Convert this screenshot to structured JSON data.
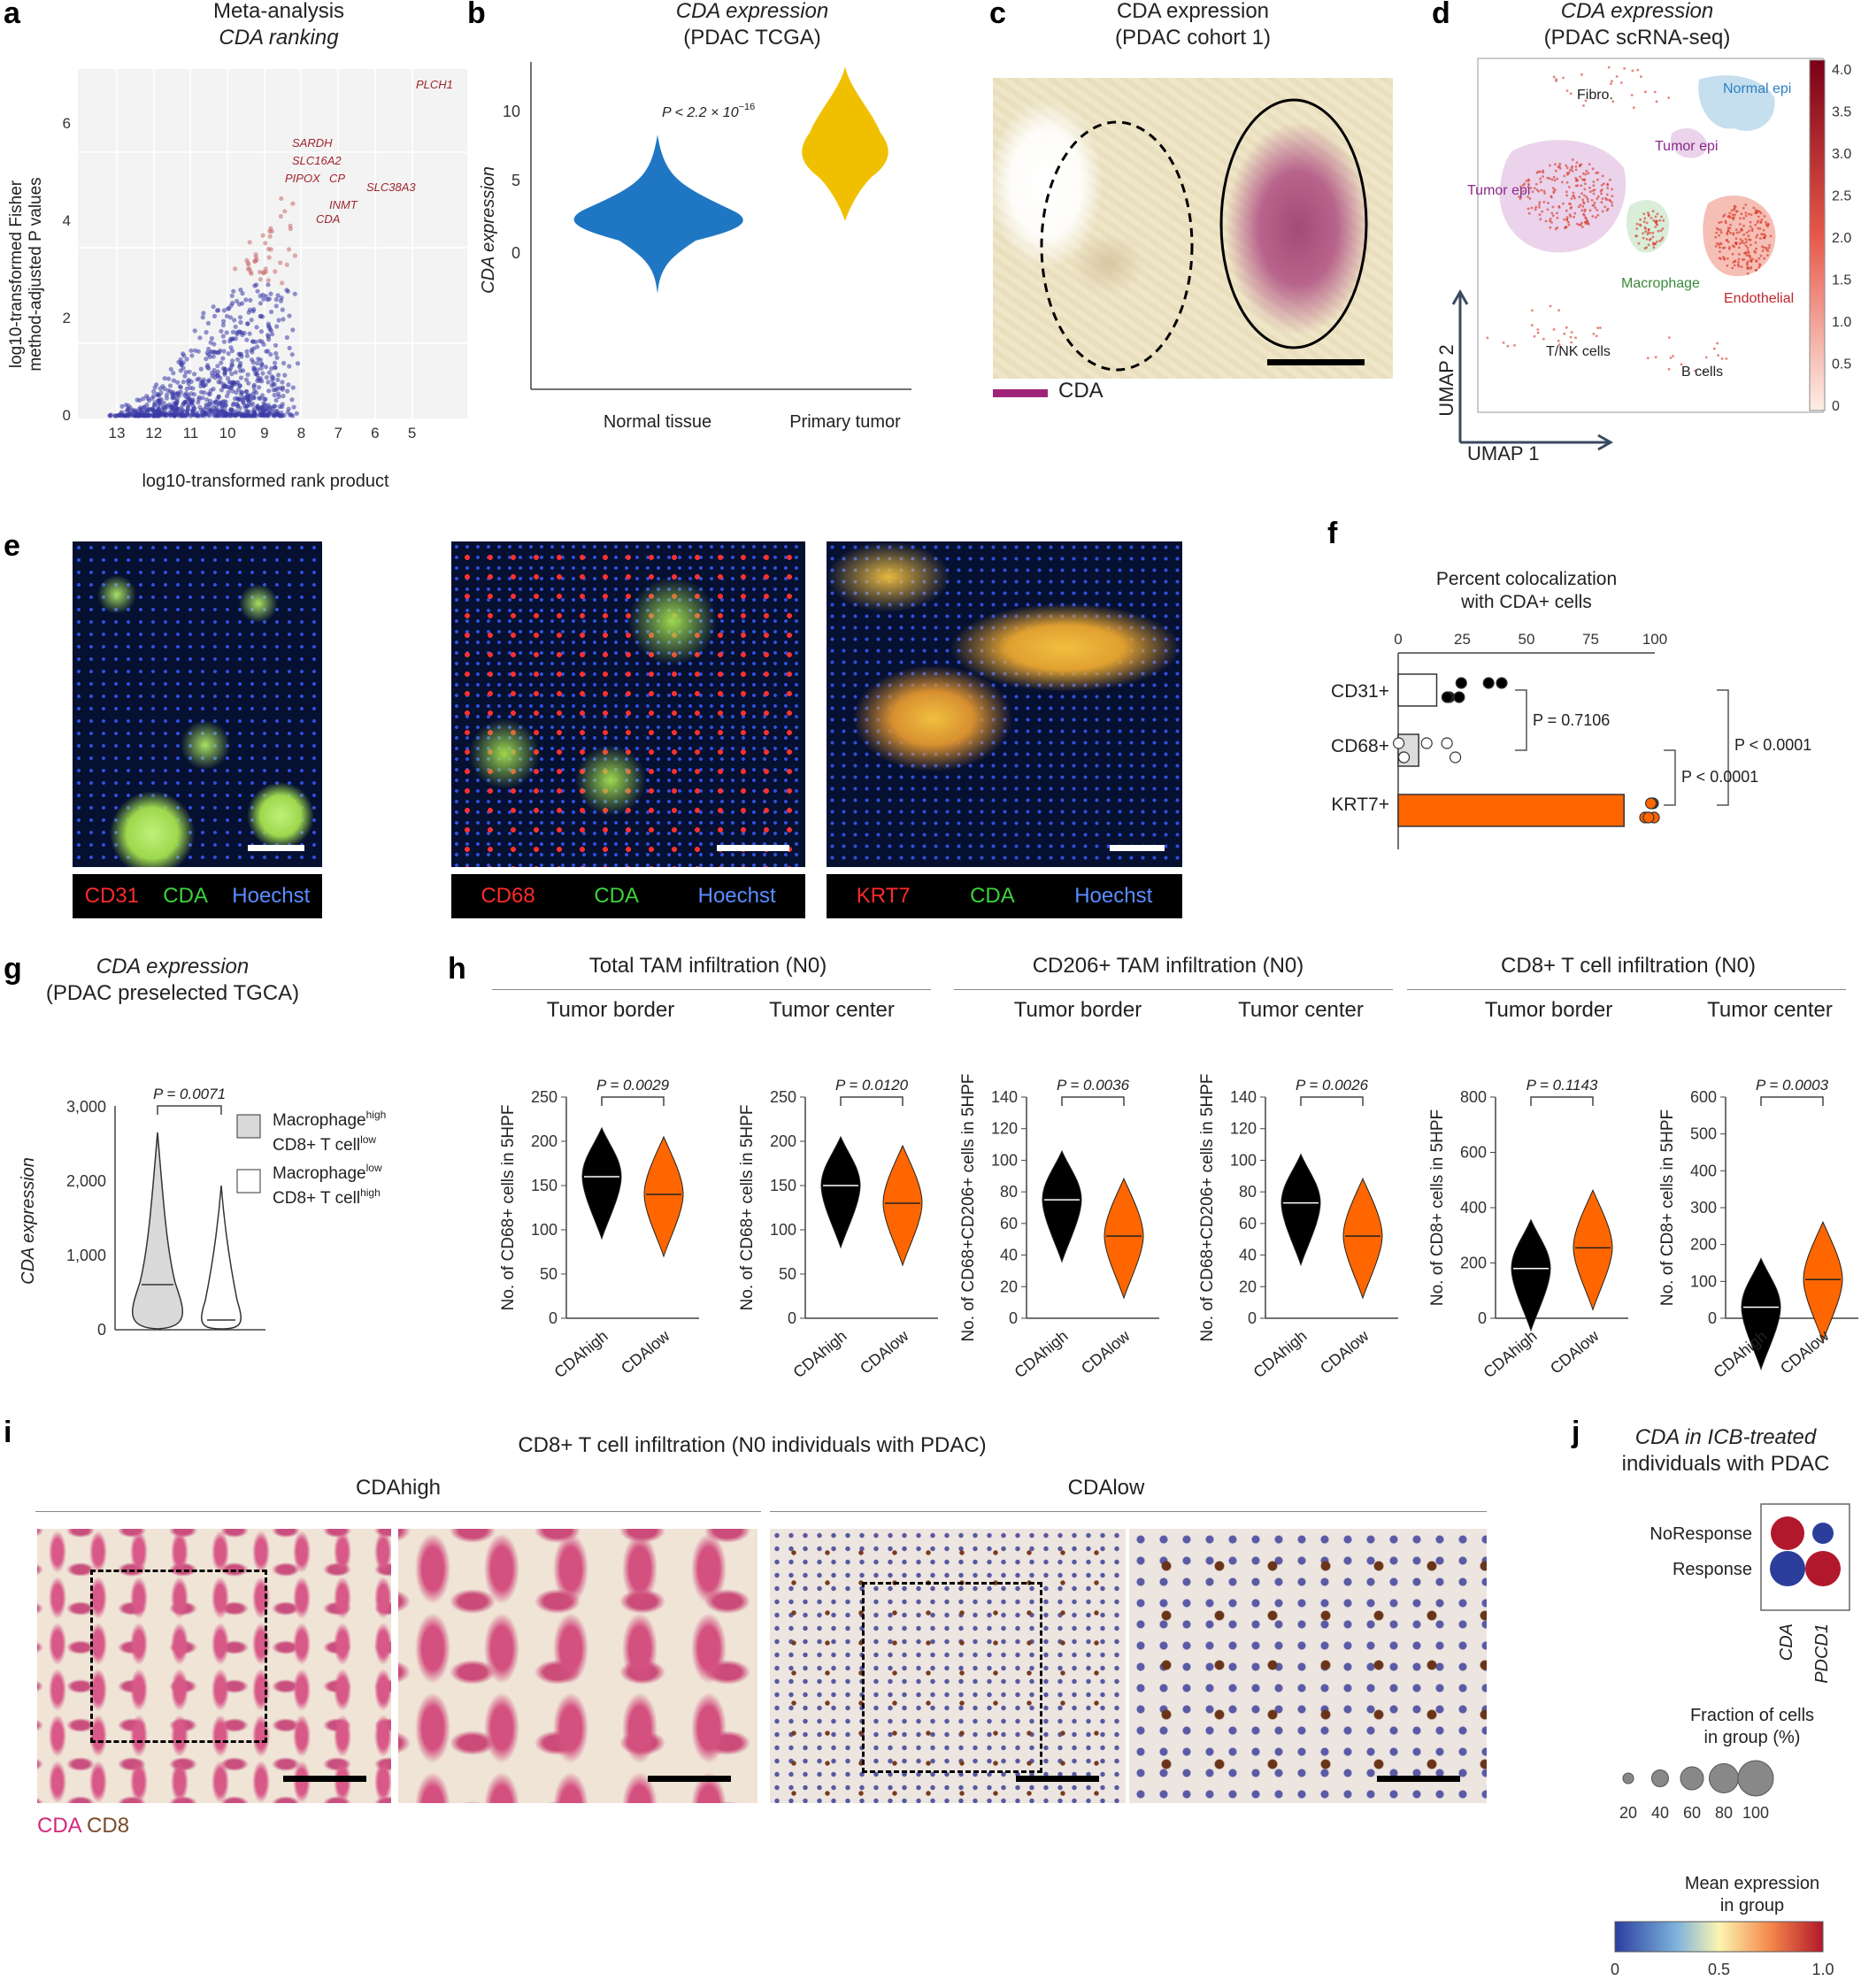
{
  "panels": {
    "a": {
      "label": "a",
      "title1": "Meta-analysis",
      "title2": "CDA ranking",
      "ylabel1": "log10-transformed Fisher",
      "ylabel2": "method-adjusted P values",
      "xlabel": "log10-transformed rank product",
      "xticks": [
        "13",
        "12",
        "11",
        "10",
        "9",
        "8",
        "7",
        "6",
        "5"
      ],
      "yticks": [
        "0",
        "2",
        "4",
        "6"
      ],
      "genes": [
        "PLCH1",
        "SARDH",
        "SLC16A2",
        "PIPOX",
        "CP",
        "SLC38A3",
        "INMT",
        "CDA"
      ]
    },
    "b": {
      "label": "b",
      "title1": "CDA expression",
      "title2": "(PDAC TCGA)",
      "ylabel": "CDA expression",
      "pval": "P < 2.2 × 10",
      "pexp": "−16",
      "cats": [
        "Normal tissue",
        "Primary tumor"
      ],
      "yticks": [
        "0",
        "5",
        "10"
      ]
    },
    "c": {
      "label": "c",
      "title1": "CDA expression",
      "title2": "(PDAC cohort 1)",
      "legend": "CDA"
    },
    "d": {
      "label": "d",
      "title1": "CDA expression",
      "title2": "(PDAC scRNA-seq)",
      "clusters": [
        "Fibro.",
        "Normal epi",
        "Tumor epi",
        "Tumor epi",
        "Macrophage",
        "Endothelial",
        "T/NK cells",
        "B cells"
      ],
      "umap1": "UMAP 1",
      "umap2": "UMAP 2",
      "cbar": [
        "4.0",
        "3.5",
        "3.0",
        "2.5",
        "2.0",
        "1.5",
        "1.0",
        "0.5",
        "0"
      ]
    },
    "e": {
      "label": "e",
      "tiles": [
        {
          "marker": "CD31",
          "cda": "CDA",
          "hoechst": "Hoechst"
        },
        {
          "marker": "CD68",
          "cda": "CDA",
          "hoechst": "Hoechst"
        },
        {
          "marker": "KRT7",
          "cda": "CDA",
          "hoechst": "Hoechst"
        }
      ]
    },
    "f": {
      "label": "f",
      "title1": "Percent colocalization",
      "title2": "with CDA+ cells",
      "xticks": [
        "0",
        "25",
        "50",
        "75",
        "100"
      ],
      "rows": [
        "CD31+",
        "CD68+",
        "KRT7+"
      ],
      "p1": "P = 0.7106",
      "p2": "P < 0.0001",
      "p3": "P < 0.0001"
    },
    "g": {
      "label": "g",
      "title1": "CDA expression",
      "title2": "(PDAC preselected TGCA)",
      "ylabel": "CDA expression",
      "pval": "P = 0.0071",
      "yticks": [
        "0",
        "1,000",
        "2,000",
        "3,000"
      ],
      "leg1a": "Macrophage",
      "leg1b": "high",
      "leg1c": "CD8+ T cell",
      "leg1d": "low",
      "leg2a": "Macrophage",
      "leg2b": "low",
      "leg2c": "CD8+ T cell",
      "leg2d": "high"
    },
    "h": {
      "label": "h",
      "groups": [
        {
          "title": "Total TAM infiltration (N0)",
          "sub": [
            "Tumor border",
            "Tumor center"
          ]
        },
        {
          "title": "CD206+ TAM infiltration (N0)",
          "sub": [
            "Tumor border",
            "Tumor center"
          ]
        },
        {
          "title": "CD8+ T cell infiltration (N0)",
          "sub": [
            "Tumor border",
            "Tumor center"
          ]
        }
      ],
      "plots": [
        {
          "ylabel": "No. of CD68+ cells in 5HPF",
          "p": "P = 0.0029",
          "yticks": [
            "0",
            "50",
            "100",
            "150",
            "200",
            "250"
          ],
          "ymax": 250
        },
        {
          "ylabel": "No. of CD68+ cells in 5HPF",
          "p": "P = 0.0120",
          "yticks": [
            "0",
            "50",
            "100",
            "150",
            "200",
            "250"
          ],
          "ymax": 250
        },
        {
          "ylabel": "No. of CD68+CD206+ cells in 5HPF",
          "p": "P = 0.0036",
          "yticks": [
            "0",
            "20",
            "40",
            "60",
            "80",
            "100",
            "120",
            "140"
          ],
          "ymax": 140
        },
        {
          "ylabel": "No. of CD68+CD206+ cells in 5HPF",
          "p": "P = 0.0026",
          "yticks": [
            "0",
            "20",
            "40",
            "60",
            "80",
            "100",
            "120",
            "140"
          ],
          "ymax": 140
        },
        {
          "ylabel": "No. of CD8+ cells in 5HPF",
          "p": "P = 0.1143",
          "yticks": [
            "0",
            "200",
            "400",
            "600",
            "800"
          ],
          "ymax": 800
        },
        {
          "ylabel": "No. of CD8+ cells in 5HPF",
          "p": "P = 0.0003",
          "yticks": [
            "0",
            "100",
            "200",
            "300",
            "400",
            "500",
            "600"
          ],
          "ymax": 600
        }
      ],
      "xcats": [
        "CDAhigh",
        "CDAlow"
      ]
    },
    "i": {
      "label": "i",
      "title": "CD8+ T cell infiltration (N0 individuals with PDAC)",
      "left": "CDAhigh",
      "right": "CDAlow",
      "legend_cda": "CDA",
      "legend_cd8": "CD8"
    },
    "j": {
      "label": "j",
      "title1": "CDA in ICB-treated",
      "title2": "individuals with PDAC",
      "rows": [
        "NoResponse",
        "Response"
      ],
      "cols": [
        "CDA",
        "PDCD1"
      ],
      "size_title1": "Fraction of cells",
      "size_title2": "in group (%)",
      "size_ticks": [
        "20",
        "40",
        "60",
        "80",
        "100"
      ],
      "color_title1": "Mean expression",
      "color_title2": "in group",
      "color_ticks": [
        "0",
        "0.5",
        "1.0"
      ]
    }
  },
  "chart_data": [
    {
      "type": "violin",
      "panel": "b",
      "categories": [
        "Normal tissue",
        "Primary tumor"
      ],
      "medians": [
        4.3,
        9.0
      ],
      "ylim": [
        -1,
        14
      ],
      "colors": [
        "#1f77c4",
        "#f0c000"
      ]
    },
    {
      "type": "bar",
      "panel": "f",
      "categories": [
        "CD31+",
        "CD68+",
        "KRT7+"
      ],
      "values": [
        15,
        8,
        88
      ],
      "xlim": [
        0,
        100
      ]
    },
    {
      "type": "violin",
      "panel": "g",
      "categories": [
        "Macrophage high CD8+ T cell low",
        "Macrophage low CD8+ T cell high"
      ],
      "medians": [
        600,
        120
      ],
      "ylim": [
        0,
        3000
      ]
    },
    {
      "type": "violin",
      "panel": "h",
      "series": [
        {
          "values": [
            160,
            140
          ]
        },
        {
          "values": [
            150,
            130
          ]
        },
        {
          "values": [
            75,
            52
          ]
        },
        {
          "values": [
            73,
            52
          ]
        },
        {
          "values": [
            180,
            255
          ]
        },
        {
          "values": [
            30,
            105
          ]
        }
      ]
    },
    {
      "type": "heatmap",
      "panel": "j",
      "rows": [
        "NoResponse",
        "Response"
      ],
      "cols": [
        "CDA",
        "PDCD1"
      ],
      "mean_expression": [
        [
          1.0,
          0.0
        ],
        [
          0.0,
          1.0
        ]
      ],
      "fraction_pct": [
        [
          95,
          60
        ],
        [
          100,
          100
        ]
      ]
    }
  ],
  "colors": {
    "violin_blue": "#1f77c4",
    "violin_yellow": "#f0c000",
    "orange": "#ff6600",
    "black": "#000000",
    "red": "#b2182b",
    "blue": "#2c3e9c"
  }
}
